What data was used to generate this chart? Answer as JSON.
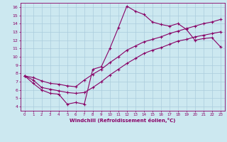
{
  "title": "",
  "xlabel": "Windchill (Refroidissement éolien,°C)",
  "bg_color": "#cce8f0",
  "grid_color": "#aaccdd",
  "line_color": "#880066",
  "xlim": [
    -0.5,
    23.5
  ],
  "ylim": [
    3.5,
    16.5
  ],
  "xticks": [
    0,
    1,
    2,
    3,
    4,
    5,
    6,
    7,
    8,
    9,
    10,
    11,
    12,
    13,
    14,
    15,
    16,
    17,
    18,
    19,
    20,
    21,
    22,
    23
  ],
  "yticks": [
    4,
    5,
    6,
    7,
    8,
    9,
    10,
    11,
    12,
    13,
    14,
    15,
    16
  ],
  "line1_x": [
    0,
    1,
    2,
    3,
    4,
    5,
    6,
    7,
    8,
    9,
    10,
    11,
    12,
    13,
    14,
    15,
    16,
    17,
    18,
    19,
    20,
    21,
    22,
    23
  ],
  "line1_y": [
    7.7,
    6.8,
    6.0,
    5.6,
    5.5,
    4.3,
    4.5,
    4.3,
    8.5,
    8.8,
    11.0,
    13.5,
    16.1,
    15.5,
    15.1,
    14.2,
    13.9,
    13.7,
    14.0,
    13.3,
    12.0,
    12.2,
    12.3,
    11.2
  ],
  "line2_x": [
    0,
    1,
    2,
    3,
    4,
    5,
    6,
    7,
    8,
    9,
    10,
    11,
    12,
    13,
    14,
    15,
    16,
    17,
    18,
    19,
    20,
    21,
    22,
    23
  ],
  "line2_y": [
    7.7,
    7.5,
    7.1,
    6.8,
    6.7,
    6.5,
    6.4,
    7.2,
    7.9,
    8.5,
    9.3,
    10.0,
    10.8,
    11.3,
    11.8,
    12.1,
    12.4,
    12.8,
    13.1,
    13.4,
    13.7,
    14.0,
    14.2,
    14.5
  ],
  "line3_x": [
    0,
    1,
    2,
    3,
    4,
    5,
    6,
    7,
    8,
    9,
    10,
    11,
    12,
    13,
    14,
    15,
    16,
    17,
    18,
    19,
    20,
    21,
    22,
    23
  ],
  "line3_y": [
    7.7,
    7.2,
    6.3,
    6.1,
    5.9,
    5.7,
    5.6,
    5.7,
    6.3,
    7.0,
    7.8,
    8.5,
    9.2,
    9.8,
    10.4,
    10.8,
    11.1,
    11.5,
    11.9,
    12.1,
    12.4,
    12.6,
    12.8,
    13.0
  ]
}
